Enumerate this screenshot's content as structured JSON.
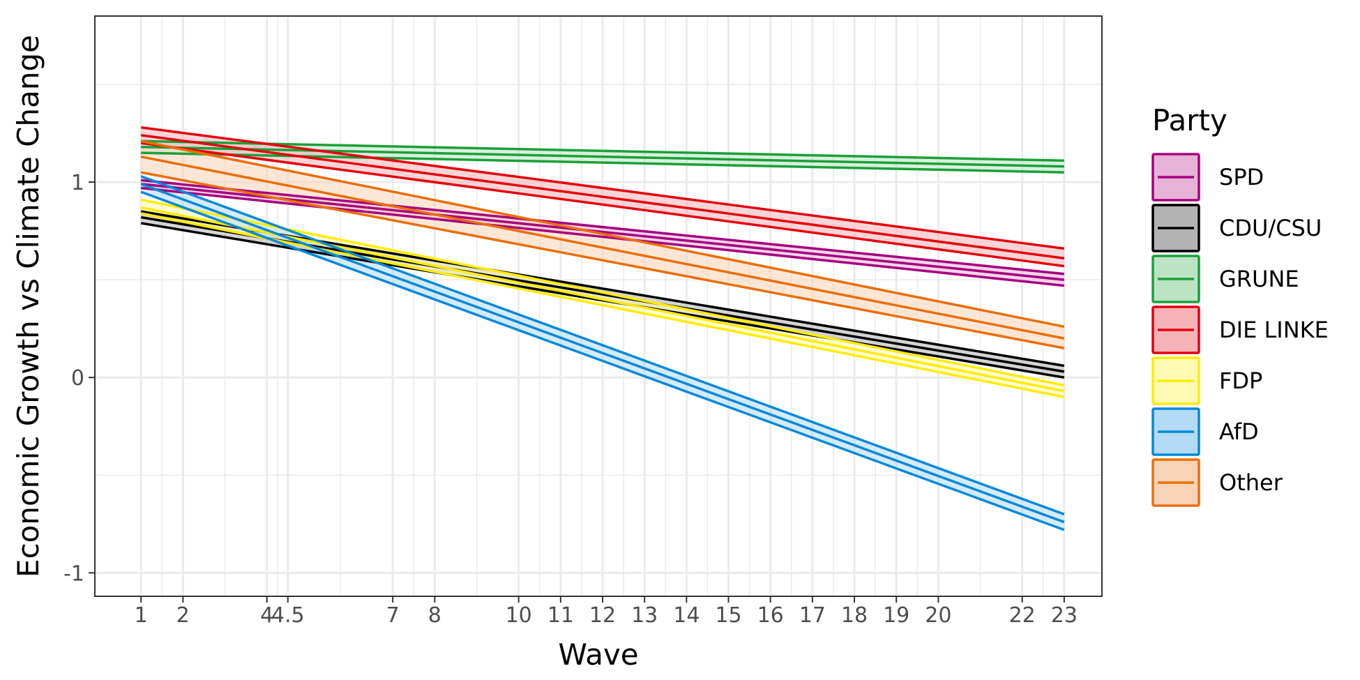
{
  "chart_data": {
    "type": "line",
    "xlabel": "Wave",
    "ylabel": "Economic Growth vs Climate Change",
    "xlim": [
      -0.1,
      23.9
    ],
    "ylim": [
      -1.12,
      1.85
    ],
    "x_ticks": [
      1,
      2,
      4,
      4.5,
      7,
      8,
      10,
      11,
      12,
      13,
      14,
      15,
      16,
      17,
      18,
      19,
      20,
      22,
      23
    ],
    "x_tick_labels": [
      "1",
      "2",
      "4",
      "4.5",
      "7",
      "8",
      "10",
      "11",
      "12",
      "13",
      "14",
      "15",
      "16",
      "17",
      "18",
      "19",
      "20",
      "22",
      "23"
    ],
    "y_ticks": [
      -1,
      0,
      1
    ],
    "y_tick_labels": [
      "-1",
      "0",
      "1"
    ],
    "grid": true,
    "legend": {
      "title": "Party",
      "position": "right"
    },
    "series": [
      {
        "name": "SPD",
        "color": "#A6007D",
        "fill": "#E6B2D8",
        "x": [
          1,
          23
        ],
        "fit": [
          0.99,
          0.5
        ],
        "lower": [
          0.97,
          0.47
        ],
        "upper": [
          1.01,
          0.53
        ]
      },
      {
        "name": "CDU/CSU",
        "color": "#000000",
        "fill": "#B3B3B3",
        "x": [
          1,
          23
        ],
        "fit": [
          0.82,
          0.03
        ],
        "lower": [
          0.79,
          0.0
        ],
        "upper": [
          0.85,
          0.06
        ]
      },
      {
        "name": "GRUNE",
        "color": "#1AA037",
        "fill": "#BCE3C4",
        "x": [
          1,
          23
        ],
        "fit": [
          1.18,
          1.08
        ],
        "lower": [
          1.15,
          1.05
        ],
        "upper": [
          1.21,
          1.11
        ]
      },
      {
        "name": "DIE LINKE",
        "color": "#E3000F",
        "fill": "#F6B3B7",
        "x": [
          1,
          23
        ],
        "fit": [
          1.24,
          0.61
        ],
        "lower": [
          1.2,
          0.57
        ],
        "upper": [
          1.28,
          0.66
        ]
      },
      {
        "name": "FDP",
        "color": "#FFED00",
        "fill": "#FFF9B3",
        "x": [
          1,
          23
        ],
        "fit": [
          0.87,
          -0.07
        ],
        "lower": [
          0.84,
          -0.1
        ],
        "upper": [
          0.91,
          -0.04
        ]
      },
      {
        "name": "AfD",
        "color": "#0489DB",
        "fill": "#B4DBF4",
        "x": [
          1,
          23
        ],
        "fit": [
          0.99,
          -0.74
        ],
        "lower": [
          0.95,
          -0.78
        ],
        "upper": [
          1.03,
          -0.7
        ]
      },
      {
        "name": "Other",
        "color": "#EB6E0A",
        "fill": "#F9D3B5",
        "x": [
          1,
          23
        ],
        "fit": [
          1.13,
          0.2
        ],
        "lower": [
          1.05,
          0.15
        ],
        "upper": [
          1.21,
          0.26
        ]
      }
    ]
  }
}
